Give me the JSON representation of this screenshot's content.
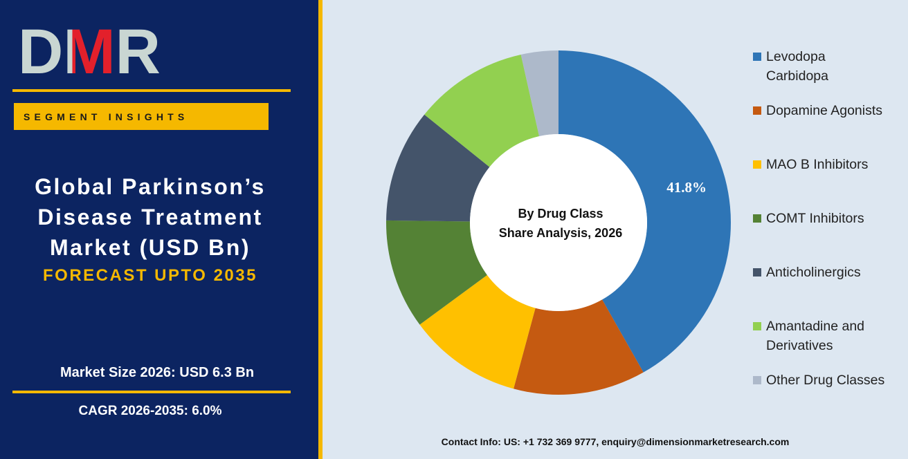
{
  "logo": "DMR",
  "segment_label": "SEGMENT INSIGHTS",
  "title": "Global Parkinson’s Disease Treatment Market (USD Bn)",
  "subtitle": "FORECAST UPTO 2035",
  "market_size": "Market Size 2026: USD 6.3 Bn",
  "cagr": "CAGR 2026-2035: 6.0%",
  "contact": "Contact Info: US: +1 732 369 9777, enquiry@dimensionmarketresearch.com",
  "chart_data": {
    "type": "donut",
    "center_label": [
      "By Drug Class",
      "Share Analysis, 2026"
    ],
    "categories": [
      "Levodopa Carbidopa",
      "Dopamine Agonists",
      "MAO B Inhibitors",
      "COMT Inhibitors",
      "Anticholinergics",
      "Amantadine and Derivatives",
      "Other Drug Classes"
    ],
    "values": [
      41.8,
      12.4,
      10.7,
      10.3,
      10.6,
      10.7,
      3.5
    ],
    "value_labels": [
      "41.8%",
      null,
      null,
      null,
      null,
      null,
      null
    ],
    "colors": [
      "#2e75b6",
      "#c55a11",
      "#ffc000",
      "#548235",
      "#44546a",
      "#92d050",
      "#adb9ca"
    ],
    "legend": "right"
  }
}
